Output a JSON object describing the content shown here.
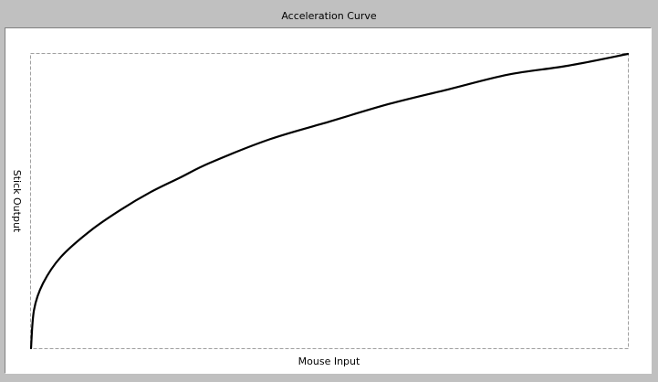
{
  "chart_data": {
    "type": "line",
    "title": "Acceleration Curve",
    "xlabel": "Mouse Input",
    "ylabel": "Stick Output",
    "xlim": [
      0,
      1
    ],
    "ylim": [
      0,
      1
    ],
    "grid": false,
    "series": [
      {
        "x": [
          0,
          0.005,
          0.02,
          0.05,
          0.1,
          0.15,
          0.2,
          0.25,
          0.3,
          0.4,
          0.5,
          0.6,
          0.7,
          0.8,
          0.9,
          1.0
        ],
        "values": [
          0,
          0.13,
          0.22,
          0.31,
          0.4,
          0.47,
          0.53,
          0.58,
          0.63,
          0.71,
          0.77,
          0.83,
          0.88,
          0.93,
          0.96,
          1.0
        ]
      }
    ],
    "colors": {
      "curve": "#000000",
      "frame": "#a0a0a0",
      "background": "#c0c0c0",
      "plot_background": "#ffffff"
    }
  }
}
